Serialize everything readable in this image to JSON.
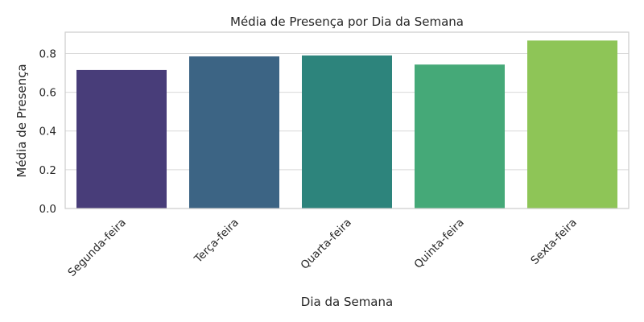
{
  "chart_data": {
    "type": "bar",
    "title": "Média de Presença por Dia da Semana",
    "xlabel": "Dia da Semana",
    "ylabel": "Média de Presença",
    "categories": [
      "Segunda-feira",
      "Terça-feira",
      "Quarta-feira",
      "Quinta-feira",
      "Sexta-feira"
    ],
    "values": [
      0.715,
      0.785,
      0.79,
      0.743,
      0.867
    ],
    "colors": [
      "#483d79",
      "#3c6484",
      "#2d847c",
      "#45a978",
      "#8ec557"
    ],
    "ylim": [
      0,
      0.91
    ],
    "yticks": [
      0.0,
      0.2,
      0.4,
      0.6,
      0.8
    ],
    "ytick_labels": [
      "0.0",
      "0.2",
      "0.4",
      "0.6",
      "0.8"
    ],
    "grid": true,
    "xtick_rotation_deg": 45
  }
}
